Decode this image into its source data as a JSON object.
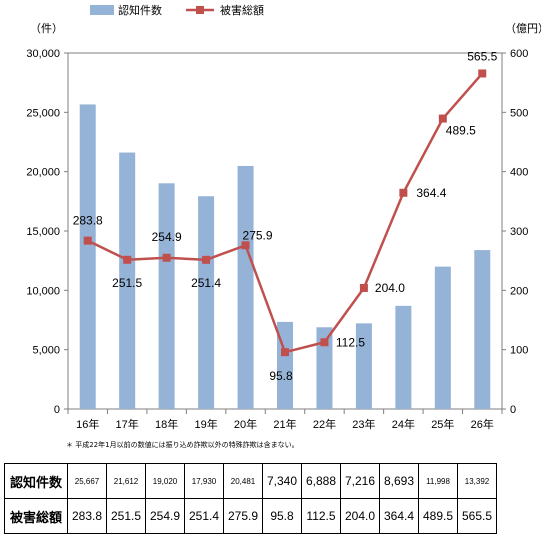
{
  "chart_data": {
    "type": "bar+line",
    "categories": [
      "16年",
      "17年",
      "18年",
      "19年",
      "20年",
      "21年",
      "22年",
      "23年",
      "24年",
      "25年",
      "26年"
    ],
    "series": [
      {
        "name": "認知件数",
        "type": "bar",
        "axis": "left",
        "color": "#95b3d7",
        "values": [
          25667,
          21612,
          19020,
          17930,
          20481,
          7340,
          6888,
          7216,
          8693,
          11998,
          13392
        ]
      },
      {
        "name": "被害総額",
        "type": "line",
        "axis": "right",
        "color": "#c0504d",
        "values": [
          283.8,
          251.5,
          254.9,
          251.4,
          275.9,
          95.8,
          112.5,
          204.0,
          364.4,
          489.5,
          565.5
        ],
        "labels": [
          "283.8",
          "251.5",
          "254.9",
          "251.4",
          "275.9",
          "95.8",
          "112.5",
          "204.0",
          "364.4",
          "489.5",
          "565.5"
        ]
      }
    ],
    "y_left": {
      "unit": "（件）",
      "ylim": [
        0,
        30000
      ],
      "ticks": [
        "0",
        "5,000",
        "10,000",
        "15,000",
        "20,000",
        "25,000",
        "30,000"
      ]
    },
    "y_right": {
      "unit": "（億円）",
      "ylim": [
        0,
        600
      ],
      "ticks": [
        "0",
        "100",
        "200",
        "300",
        "400",
        "500",
        "600"
      ]
    },
    "grid": false,
    "legend_position": "top"
  },
  "note": "＊ 平成22年1月以前の数値には振り込め詐欺以外の特殊詐欺は含まない。",
  "table": {
    "rows": [
      {
        "header": "認知件数",
        "cells": [
          "25,667",
          "21,612",
          "19,020",
          "17,930",
          "20,481",
          "7,340",
          "6,888",
          "7,216",
          "8,693",
          "11,998",
          "13,392"
        ],
        "small": [
          true,
          true,
          true,
          true,
          true,
          false,
          false,
          false,
          false,
          true,
          true
        ]
      },
      {
        "header": "被害総額",
        "cells": [
          "283.8",
          "251.5",
          "254.9",
          "251.4",
          "275.9",
          "95.8",
          "112.5",
          "204.0",
          "364.4",
          "489.5",
          "565.5"
        ],
        "small": [
          false,
          false,
          false,
          false,
          false,
          false,
          false,
          false,
          false,
          false,
          false
        ]
      }
    ]
  }
}
